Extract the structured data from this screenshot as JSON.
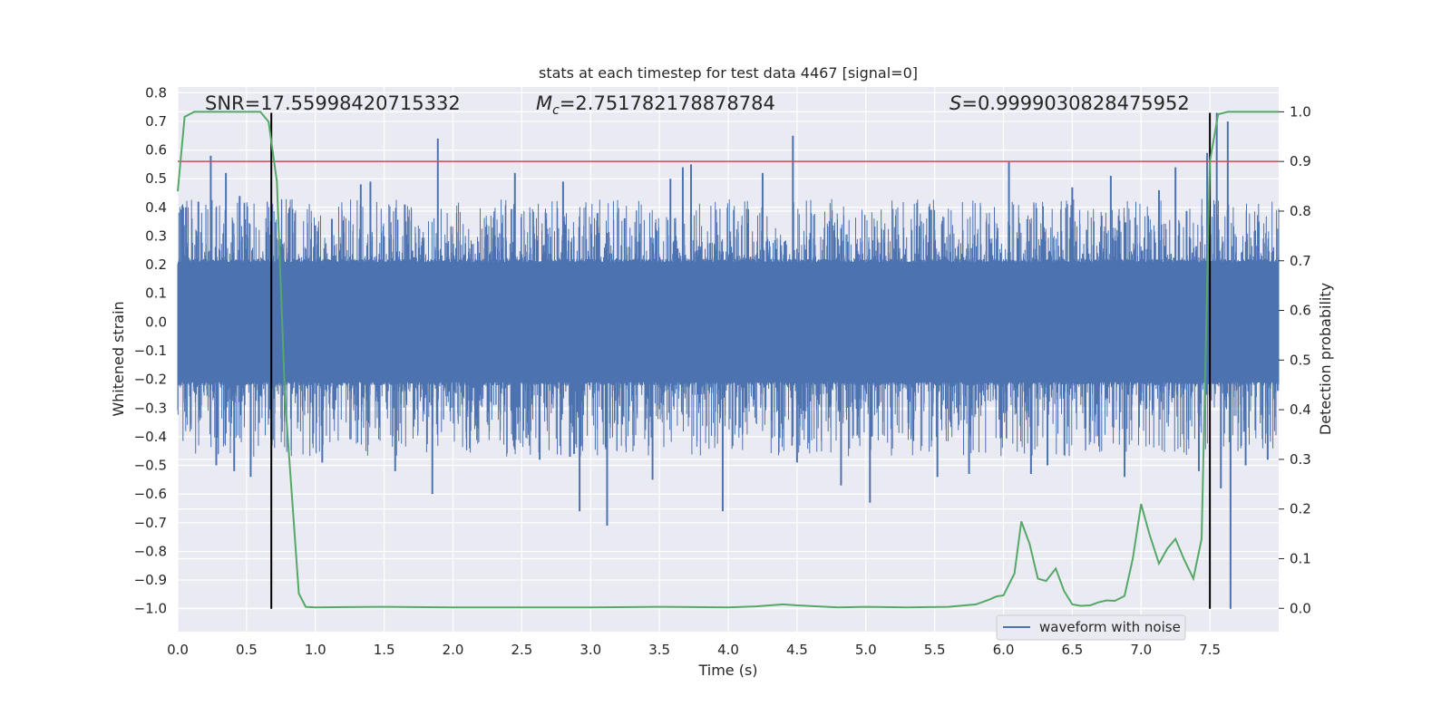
{
  "chart_data": {
    "type": "line",
    "title": "stats at each timestep for test data 4467 [signal=0]",
    "xlabel": "Time (s)",
    "ylabel_left": "Whitened strain",
    "ylabel_right": "Detection probability",
    "xlim": [
      0.0,
      8.0
    ],
    "ylim_left": [
      -1.08,
      0.82
    ],
    "ylim_right": [
      -0.047,
      1.05
    ],
    "x_ticks": [
      0.0,
      0.5,
      1.0,
      1.5,
      2.0,
      2.5,
      3.0,
      3.5,
      4.0,
      4.5,
      5.0,
      5.5,
      6.0,
      6.5,
      7.0,
      7.5
    ],
    "x_tick_labels": [
      "0.0",
      "0.5",
      "1.0",
      "1.5",
      "2.0",
      "2.5",
      "3.0",
      "3.5",
      "4.0",
      "4.5",
      "5.0",
      "5.5",
      "6.0",
      "6.5",
      "7.0",
      "7.5"
    ],
    "y_left_ticks": [
      0.8,
      0.7,
      0.6,
      0.5,
      0.4,
      0.3,
      0.2,
      0.1,
      0.0,
      -0.1,
      -0.2,
      -0.3,
      -0.4,
      -0.5,
      -0.6,
      -0.7,
      -0.8,
      -0.9,
      -1.0
    ],
    "y_left_tick_labels": [
      "0.8",
      "0.7",
      "0.6",
      "0.5",
      "0.4",
      "0.3",
      "0.2",
      "0.1",
      "0.0",
      "−0.1",
      "−0.2",
      "−0.3",
      "−0.4",
      "−0.5",
      "−0.6",
      "−0.7",
      "−0.8",
      "−0.9",
      "−1.0"
    ],
    "y_right_ticks": [
      1.0,
      0.9,
      0.8,
      0.7,
      0.6,
      0.5,
      0.4,
      0.3,
      0.2,
      0.1,
      0.0
    ],
    "y_right_tick_labels": [
      "1.0",
      "0.9",
      "0.8",
      "0.7",
      "0.6",
      "0.5",
      "0.4",
      "0.3",
      "0.2",
      "0.1",
      "0.0"
    ],
    "annotations": {
      "snr": "SNR=17.55998420715332",
      "mc_symbol": "M",
      "mc_subscript": "c",
      "mc_value": "=2.751782178878784",
      "s_symbol": "S",
      "s_value": "=0.9999030828475952"
    },
    "threshold": {
      "value": 0.9,
      "color": "#c44e52"
    },
    "vertical_markers": [
      {
        "x": 0.68,
        "ymin": -1.0,
        "ymax": 0.73
      },
      {
        "x": 7.5,
        "ymin": -1.0,
        "ymax": 0.73
      }
    ],
    "legend": {
      "label": "waveform with noise",
      "placement": "lower-right"
    },
    "series": [
      {
        "name": "waveform with noise",
        "axis": "left",
        "color": "#4c72b0",
        "kind": "noise",
        "sample_dt": 0.002,
        "base_amplitude": 0.21,
        "spikes": [
          {
            "x": 0.06,
            "y": 0.4
          },
          {
            "x": 0.15,
            "y": 0.42
          },
          {
            "x": 0.24,
            "y": 0.58
          },
          {
            "x": 0.28,
            "y": -0.5
          },
          {
            "x": 0.35,
            "y": 0.52
          },
          {
            "x": 0.41,
            "y": -0.52
          },
          {
            "x": 0.45,
            "y": 0.44
          },
          {
            "x": 0.53,
            "y": -0.54
          },
          {
            "x": 0.68,
            "y": -0.41
          },
          {
            "x": 1.05,
            "y": -0.49
          },
          {
            "x": 1.12,
            "y": 0.36
          },
          {
            "x": 1.33,
            "y": 0.48
          },
          {
            "x": 1.4,
            "y": 0.49
          },
          {
            "x": 1.58,
            "y": -0.52
          },
          {
            "x": 1.65,
            "y": 0.41
          },
          {
            "x": 1.85,
            "y": -0.6
          },
          {
            "x": 1.89,
            "y": 0.64
          },
          {
            "x": 2.45,
            "y": 0.52
          },
          {
            "x": 2.63,
            "y": -0.48
          },
          {
            "x": 2.8,
            "y": 0.49
          },
          {
            "x": 2.85,
            "y": -0.47
          },
          {
            "x": 2.88,
            "y": -0.46
          },
          {
            "x": 2.92,
            "y": -0.66
          },
          {
            "x": 3.05,
            "y": 0.38
          },
          {
            "x": 3.12,
            "y": -0.71
          },
          {
            "x": 3.45,
            "y": -0.55
          },
          {
            "x": 3.58,
            "y": 0.5
          },
          {
            "x": 3.67,
            "y": 0.54
          },
          {
            "x": 3.73,
            "y": 0.55
          },
          {
            "x": 3.96,
            "y": -0.66
          },
          {
            "x": 4.25,
            "y": 0.52
          },
          {
            "x": 4.47,
            "y": 0.65
          },
          {
            "x": 4.5,
            "y": -0.49
          },
          {
            "x": 4.82,
            "y": -0.57
          },
          {
            "x": 5.03,
            "y": -0.63
          },
          {
            "x": 5.52,
            "y": -0.54
          },
          {
            "x": 5.75,
            "y": -0.53
          },
          {
            "x": 6.04,
            "y": 0.56
          },
          {
            "x": 6.2,
            "y": -0.53
          },
          {
            "x": 6.32,
            "y": -0.5
          },
          {
            "x": 6.5,
            "y": 0.47
          },
          {
            "x": 6.78,
            "y": 0.51
          },
          {
            "x": 6.88,
            "y": -0.54
          },
          {
            "x": 7.13,
            "y": 0.46
          },
          {
            "x": 7.25,
            "y": 0.54
          },
          {
            "x": 7.42,
            "y": -0.52
          },
          {
            "x": 7.48,
            "y": 0.59
          },
          {
            "x": 7.55,
            "y": 0.73
          },
          {
            "x": 7.58,
            "y": -0.58
          },
          {
            "x": 7.63,
            "y": 0.7
          },
          {
            "x": 7.65,
            "y": -1.0
          },
          {
            "x": 7.76,
            "y": -0.5
          },
          {
            "x": 7.92,
            "y": -0.48
          }
        ]
      },
      {
        "name": "detection probability",
        "axis": "right",
        "color": "#55a868",
        "x": [
          0.0,
          0.05,
          0.12,
          0.25,
          0.4,
          0.5,
          0.6,
          0.66,
          0.72,
          0.78,
          0.88,
          0.93,
          1.0,
          1.5,
          2.0,
          3.0,
          3.5,
          4.0,
          4.2,
          4.4,
          4.5,
          4.8,
          5.0,
          5.3,
          5.6,
          5.8,
          5.9,
          5.95,
          6.0,
          6.08,
          6.13,
          6.19,
          6.25,
          6.31,
          6.38,
          6.44,
          6.5,
          6.56,
          6.63,
          6.69,
          6.75,
          6.81,
          6.88,
          6.94,
          7.0,
          7.06,
          7.13,
          7.19,
          7.25,
          7.31,
          7.38,
          7.44,
          7.5,
          7.56,
          7.63,
          7.7,
          8.0
        ],
        "y": [
          0.84,
          0.99,
          1.0,
          1.0,
          1.0,
          1.0,
          1.0,
          0.98,
          0.86,
          0.42,
          0.03,
          0.003,
          0.002,
          0.003,
          0.002,
          0.002,
          0.003,
          0.002,
          0.004,
          0.008,
          0.006,
          0.002,
          0.003,
          0.002,
          0.003,
          0.008,
          0.018,
          0.024,
          0.026,
          0.07,
          0.175,
          0.13,
          0.06,
          0.055,
          0.08,
          0.035,
          0.008,
          0.005,
          0.006,
          0.012,
          0.016,
          0.015,
          0.025,
          0.1,
          0.21,
          0.15,
          0.09,
          0.12,
          0.14,
          0.1,
          0.06,
          0.14,
          0.9,
          0.995,
          1.0,
          1.0,
          1.0
        ]
      }
    ]
  }
}
